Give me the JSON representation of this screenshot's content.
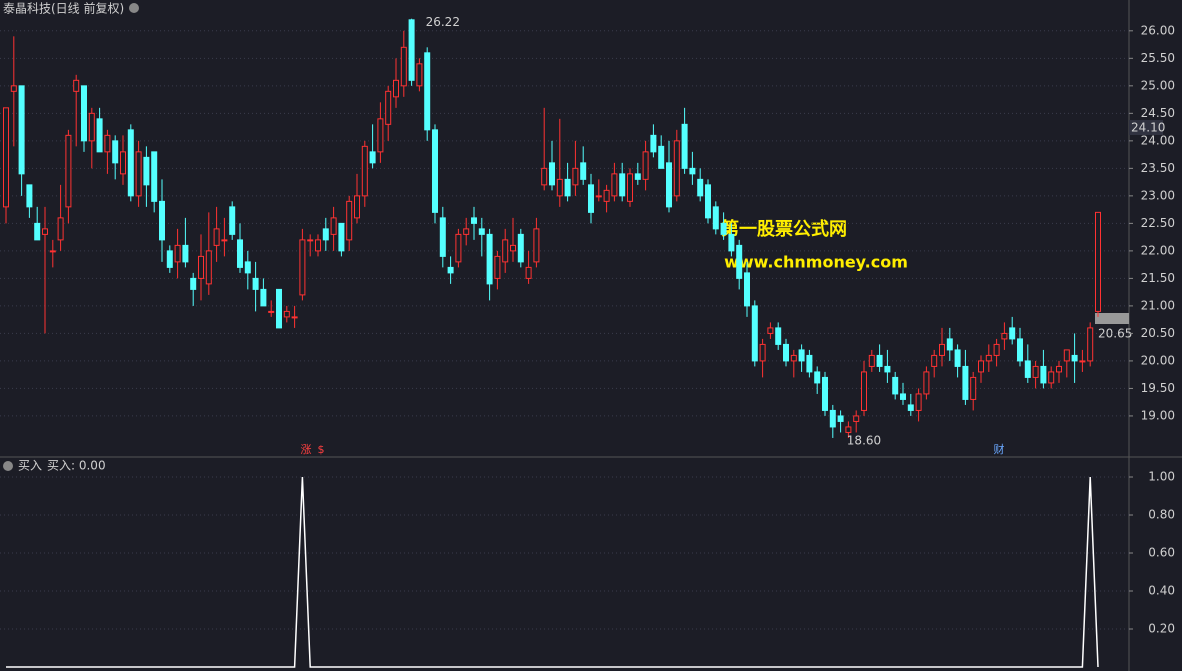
{
  "chart_data": [
    {
      "type": "candlestick",
      "title": "泰晶科技(日线 前复权)",
      "up_color": "#ff3232",
      "down_color": "#54ffff",
      "ylim": [
        18.29,
        26.56
      ],
      "yticks": [
        {
          "value": 19,
          "label": "19.00"
        },
        {
          "value": 19.5,
          "label": "19.50"
        },
        {
          "value": 20,
          "label": "20.00"
        },
        {
          "value": 20.5,
          "label": "20.50"
        },
        {
          "value": 21,
          "label": "21.00"
        },
        {
          "value": 21.5,
          "label": "21.50"
        },
        {
          "value": 22,
          "label": "22.00"
        },
        {
          "value": 22.5,
          "label": "22.50"
        },
        {
          "value": 23,
          "label": "23.00"
        },
        {
          "value": 23.5,
          "label": "23.50"
        },
        {
          "value": 24,
          "label": "24.00"
        },
        {
          "value": 24.5,
          "label": "24.50"
        },
        {
          "value": 25,
          "label": "25.00"
        },
        {
          "value": 25.5,
          "label": "25.50"
        },
        {
          "value": 26,
          "label": "26.00"
        }
      ],
      "grid": true,
      "high_label": "26.22",
      "low_label": "18.60",
      "price_tags": [
        "24.10",
        "20.65"
      ],
      "event_marks": [
        "涨",
        "$",
        "财"
      ],
      "watermark": [
        "第一股票公式网",
        "www.chnmoney.com"
      ],
      "ohlc": [
        [
          22.8,
          24.6,
          22.5,
          24.6
        ],
        [
          24.9,
          25.9,
          23.9,
          25.0
        ],
        [
          25.0,
          25.0,
          23.0,
          23.4
        ],
        [
          23.2,
          23.2,
          22.6,
          22.8
        ],
        [
          22.5,
          22.8,
          22.2,
          22.2
        ],
        [
          22.3,
          22.8,
          20.5,
          22.4
        ],
        [
          22.0,
          22.2,
          21.7,
          22.0
        ],
        [
          22.2,
          23.2,
          22.0,
          22.6
        ],
        [
          22.8,
          24.2,
          22.5,
          24.1
        ],
        [
          24.9,
          25.2,
          23.9,
          25.1
        ],
        [
          25.0,
          25.0,
          23.8,
          24.0
        ],
        [
          24.0,
          24.6,
          23.5,
          24.5
        ],
        [
          24.4,
          24.6,
          23.8,
          23.8
        ],
        [
          23.8,
          24.2,
          23.4,
          24.1
        ],
        [
          24.0,
          24.1,
          23.3,
          23.6
        ],
        [
          23.4,
          24.1,
          23.2,
          23.8
        ],
        [
          24.2,
          24.3,
          22.9,
          23.0
        ],
        [
          23.0,
          24.0,
          22.8,
          23.8
        ],
        [
          23.7,
          23.9,
          22.8,
          23.2
        ],
        [
          23.8,
          23.8,
          22.7,
          22.9
        ],
        [
          22.9,
          23.3,
          21.8,
          22.2
        ],
        [
          22.0,
          22.1,
          21.6,
          21.7
        ],
        [
          21.8,
          22.4,
          21.5,
          22.1
        ],
        [
          22.1,
          22.6,
          21.7,
          21.8
        ],
        [
          21.5,
          21.6,
          21.0,
          21.3
        ],
        [
          21.5,
          22.3,
          21.1,
          21.9
        ],
        [
          21.4,
          22.7,
          21.2,
          22.0
        ],
        [
          22.1,
          22.8,
          21.8,
          22.4
        ],
        [
          22.2,
          22.6,
          21.9,
          22.2
        ],
        [
          22.8,
          22.9,
          22.2,
          22.3
        ],
        [
          22.2,
          22.5,
          21.6,
          21.7
        ],
        [
          21.8,
          22.0,
          21.3,
          21.6
        ],
        [
          21.5,
          21.8,
          20.9,
          21.3
        ],
        [
          21.3,
          21.5,
          21.0,
          21.0
        ],
        [
          20.9,
          21.1,
          20.8,
          20.9
        ],
        [
          21.3,
          21.3,
          20.6,
          20.6
        ],
        [
          20.8,
          21.0,
          20.7,
          20.9
        ],
        [
          20.8,
          21.0,
          20.6,
          20.8
        ],
        [
          21.2,
          22.4,
          21.1,
          22.2
        ],
        [
          22.2,
          22.3,
          21.9,
          22.2
        ],
        [
          22.0,
          22.3,
          21.9,
          22.2
        ],
        [
          22.4,
          22.6,
          22.0,
          22.2
        ],
        [
          22.3,
          22.8,
          22.0,
          22.6
        ],
        [
          22.5,
          22.5,
          21.9,
          22.0
        ],
        [
          22.2,
          23.0,
          22.0,
          22.9
        ],
        [
          22.6,
          23.4,
          22.5,
          23.0
        ],
        [
          23.0,
          24.0,
          22.8,
          23.9
        ],
        [
          23.8,
          24.3,
          23.5,
          23.6
        ],
        [
          23.8,
          24.7,
          23.6,
          24.4
        ],
        [
          24.3,
          25.0,
          24.0,
          24.9
        ],
        [
          24.8,
          25.5,
          24.6,
          25.1
        ],
        [
          25.0,
          26.0,
          24.8,
          25.7
        ],
        [
          26.2,
          26.22,
          25.0,
          25.1
        ],
        [
          25.0,
          25.5,
          24.9,
          25.4
        ],
        [
          25.6,
          25.7,
          24.0,
          24.2
        ],
        [
          24.2,
          24.3,
          22.5,
          22.7
        ],
        [
          22.6,
          22.8,
          21.7,
          21.9
        ],
        [
          21.7,
          21.9,
          21.4,
          21.6
        ],
        [
          21.8,
          22.4,
          21.7,
          22.3
        ],
        [
          22.3,
          22.6,
          22.1,
          22.4
        ],
        [
          22.6,
          22.8,
          22.2,
          22.5
        ],
        [
          22.4,
          22.6,
          21.9,
          22.3
        ],
        [
          22.3,
          22.4,
          21.1,
          21.4
        ],
        [
          21.5,
          22.0,
          21.3,
          21.9
        ],
        [
          21.8,
          22.4,
          21.6,
          22.2
        ],
        [
          22.0,
          22.6,
          21.8,
          22.1
        ],
        [
          22.3,
          22.4,
          21.7,
          21.8
        ],
        [
          21.5,
          22.0,
          21.4,
          21.7
        ],
        [
          21.8,
          22.6,
          21.7,
          22.4
        ],
        [
          23.2,
          24.6,
          23.1,
          23.5
        ],
        [
          23.6,
          24.0,
          23.1,
          23.2
        ],
        [
          23.0,
          24.4,
          22.8,
          23.3
        ],
        [
          23.3,
          23.6,
          22.9,
          23.0
        ],
        [
          23.2,
          24.0,
          23.0,
          23.5
        ],
        [
          23.6,
          23.9,
          23.2,
          23.3
        ],
        [
          23.2,
          23.4,
          22.5,
          22.7
        ],
        [
          23.0,
          23.3,
          22.9,
          23.0
        ],
        [
          22.9,
          23.2,
          22.7,
          23.1
        ],
        [
          23.0,
          23.6,
          22.9,
          23.4
        ],
        [
          23.4,
          23.6,
          22.9,
          23.0
        ],
        [
          22.9,
          23.5,
          22.8,
          23.4
        ],
        [
          23.4,
          23.6,
          23.2,
          23.3
        ],
        [
          23.3,
          24.0,
          23.1,
          23.8
        ],
        [
          24.1,
          24.3,
          23.7,
          23.8
        ],
        [
          23.9,
          24.1,
          23.5,
          23.5
        ],
        [
          23.6,
          24.0,
          22.7,
          22.8
        ],
        [
          23.0,
          24.2,
          22.9,
          24.0
        ],
        [
          24.3,
          24.6,
          23.4,
          23.5
        ],
        [
          23.5,
          23.8,
          23.2,
          23.4
        ],
        [
          23.3,
          23.5,
          22.9,
          23.0
        ],
        [
          23.2,
          23.3,
          22.5,
          22.6
        ],
        [
          22.8,
          22.9,
          22.3,
          22.4
        ],
        [
          22.5,
          22.7,
          22.2,
          22.3
        ],
        [
          22.3,
          22.5,
          21.9,
          22.0
        ],
        [
          22.1,
          22.2,
          21.3,
          21.5
        ],
        [
          21.6,
          21.8,
          20.8,
          21.0
        ],
        [
          21.0,
          21.1,
          19.9,
          20.0
        ],
        [
          20.0,
          20.4,
          19.7,
          20.3
        ],
        [
          20.5,
          20.7,
          20.4,
          20.6
        ],
        [
          20.6,
          20.7,
          20.2,
          20.3
        ],
        [
          20.3,
          20.4,
          19.9,
          20.0
        ],
        [
          20.0,
          20.2,
          19.7,
          20.1
        ],
        [
          20.2,
          20.3,
          19.8,
          20.0
        ],
        [
          20.1,
          20.2,
          19.7,
          19.8
        ],
        [
          19.8,
          19.9,
          19.4,
          19.6
        ],
        [
          19.7,
          19.8,
          19.0,
          19.1
        ],
        [
          19.1,
          19.2,
          18.6,
          18.8
        ],
        [
          19.0,
          19.1,
          18.7,
          18.9
        ],
        [
          18.7,
          18.9,
          18.6,
          18.8
        ],
        [
          18.9,
          19.1,
          18.7,
          19.0
        ],
        [
          19.1,
          20.0,
          19.0,
          19.8
        ],
        [
          19.9,
          20.2,
          19.8,
          20.1
        ],
        [
          20.1,
          20.3,
          19.8,
          19.9
        ],
        [
          19.9,
          20.2,
          19.6,
          19.8
        ],
        [
          19.7,
          19.8,
          19.3,
          19.4
        ],
        [
          19.4,
          19.6,
          19.2,
          19.3
        ],
        [
          19.2,
          19.4,
          19.0,
          19.1
        ],
        [
          19.1,
          19.5,
          18.9,
          19.4
        ],
        [
          19.4,
          19.9,
          19.3,
          19.8
        ],
        [
          19.9,
          20.2,
          19.7,
          20.1
        ],
        [
          20.1,
          20.6,
          19.9,
          20.3
        ],
        [
          20.4,
          20.6,
          20.0,
          20.2
        ],
        [
          20.2,
          20.3,
          19.7,
          19.9
        ],
        [
          19.9,
          20.2,
          19.2,
          19.3
        ],
        [
          19.3,
          19.8,
          19.1,
          19.7
        ],
        [
          19.8,
          20.1,
          19.6,
          20.0
        ],
        [
          20.0,
          20.3,
          19.8,
          20.1
        ],
        [
          20.1,
          20.4,
          19.9,
          20.3
        ],
        [
          20.4,
          20.7,
          20.2,
          20.5
        ],
        [
          20.6,
          20.8,
          20.3,
          20.4
        ],
        [
          20.4,
          20.6,
          19.9,
          20.0
        ],
        [
          20.0,
          20.3,
          19.6,
          19.7
        ],
        [
          19.7,
          20.0,
          19.5,
          19.9
        ],
        [
          19.9,
          20.2,
          19.5,
          19.6
        ],
        [
          19.6,
          19.9,
          19.5,
          19.8
        ],
        [
          19.8,
          20.0,
          19.6,
          19.9
        ],
        [
          20.0,
          20.2,
          19.7,
          20.2
        ],
        [
          20.1,
          20.5,
          19.6,
          20.0
        ],
        [
          20.0,
          20.2,
          19.8,
          20.0
        ],
        [
          20.0,
          20.7,
          19.9,
          20.6
        ],
        [
          20.9,
          22.7,
          20.8,
          22.7
        ]
      ]
    },
    {
      "type": "line",
      "title": "买入",
      "legend": "买入: 0.00",
      "color": "#ffffff",
      "ylim": [
        0,
        1.1
      ],
      "yticks": [
        {
          "value": 0.2,
          "label": "0.20"
        },
        {
          "value": 0.4,
          "label": "0.40"
        },
        {
          "value": 0.6,
          "label": "0.60"
        },
        {
          "value": 0.8,
          "label": "0.80"
        },
        {
          "value": 1,
          "label": "1.00"
        }
      ],
      "grid": true,
      "values": [
        0,
        0,
        0,
        0,
        0,
        0,
        0,
        0,
        0,
        0,
        0,
        0,
        0,
        0,
        0,
        0,
        0,
        0,
        0,
        0,
        0,
        0,
        0,
        0,
        0,
        0,
        0,
        0,
        0,
        0,
        0,
        0,
        0,
        0,
        0,
        0,
        0,
        0,
        1,
        0,
        0,
        0,
        0,
        0,
        0,
        0,
        0,
        0,
        0,
        0,
        0,
        0,
        0,
        0,
        0,
        0,
        0,
        0,
        0,
        0,
        0,
        0,
        0,
        0,
        0,
        0,
        0,
        0,
        0,
        0,
        0,
        0,
        0,
        0,
        0,
        0,
        0,
        0,
        0,
        0,
        0,
        0,
        0,
        0,
        0,
        0,
        0,
        0,
        0,
        0,
        0,
        0,
        0,
        0,
        0,
        0,
        0,
        0,
        0,
        0,
        0,
        0,
        0,
        0,
        0,
        0,
        0,
        0,
        0,
        0,
        0,
        0,
        0,
        0,
        0,
        0,
        0,
        0,
        0,
        0,
        0,
        0,
        0,
        0,
        0,
        0,
        0,
        0,
        0,
        0,
        0,
        0,
        0,
        0,
        0,
        0,
        0,
        0,
        0,
        1,
        0
      ]
    }
  ]
}
